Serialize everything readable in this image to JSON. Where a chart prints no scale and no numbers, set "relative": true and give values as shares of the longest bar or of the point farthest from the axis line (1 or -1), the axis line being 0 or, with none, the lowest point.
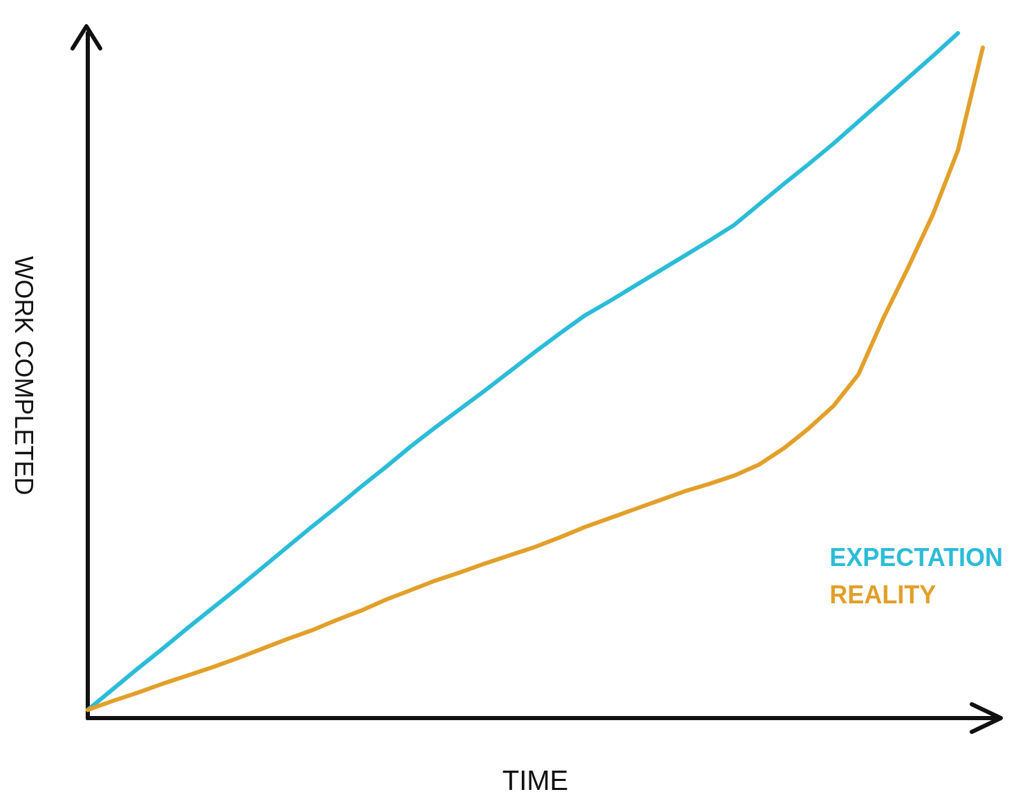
{
  "chart_data": {
    "type": "line",
    "relative": true,
    "xlabel": "TIME",
    "ylabel": "WORK COMPLETED",
    "categories": [
      null,
      null,
      null,
      null,
      null,
      null,
      null,
      null,
      null,
      null,
      null,
      null,
      null,
      null,
      null,
      null,
      null,
      null,
      null,
      null,
      null,
      null,
      null,
      null,
      null,
      null,
      null,
      null,
      null,
      null,
      null,
      null,
      null,
      null,
      null,
      null,
      null
    ],
    "series": [
      {
        "name": "EXPECTATION",
        "color": "#2bbcd8",
        "values": [
          0.012,
          0.042,
          0.072,
          0.101,
          0.131,
          0.16,
          0.189,
          0.219,
          0.249,
          0.279,
          0.308,
          0.338,
          0.367,
          0.397,
          0.425,
          0.452,
          0.479,
          0.507,
          0.535,
          0.562,
          0.588,
          0.609,
          0.631,
          0.653,
          0.675,
          0.697,
          0.72,
          0.75,
          0.78,
          0.809,
          0.839,
          0.871,
          0.903,
          0.935,
          0.967,
          1.0,
          null
        ]
      },
      {
        "name": "REALITY",
        "color": "#e2a02a",
        "values": [
          0.012,
          0.025,
          0.037,
          0.05,
          0.062,
          0.074,
          0.087,
          0.101,
          0.115,
          0.128,
          0.143,
          0.157,
          0.173,
          0.187,
          0.201,
          0.213,
          0.226,
          0.238,
          0.25,
          0.264,
          0.279,
          0.292,
          0.305,
          0.318,
          0.331,
          0.342,
          0.354,
          0.37,
          0.394,
          0.423,
          0.456,
          0.502,
          0.584,
          0.658,
          0.736,
          0.829,
          0.979
        ]
      }
    ],
    "legend": "right",
    "marker": "none",
    "line_style": "solid"
  }
}
